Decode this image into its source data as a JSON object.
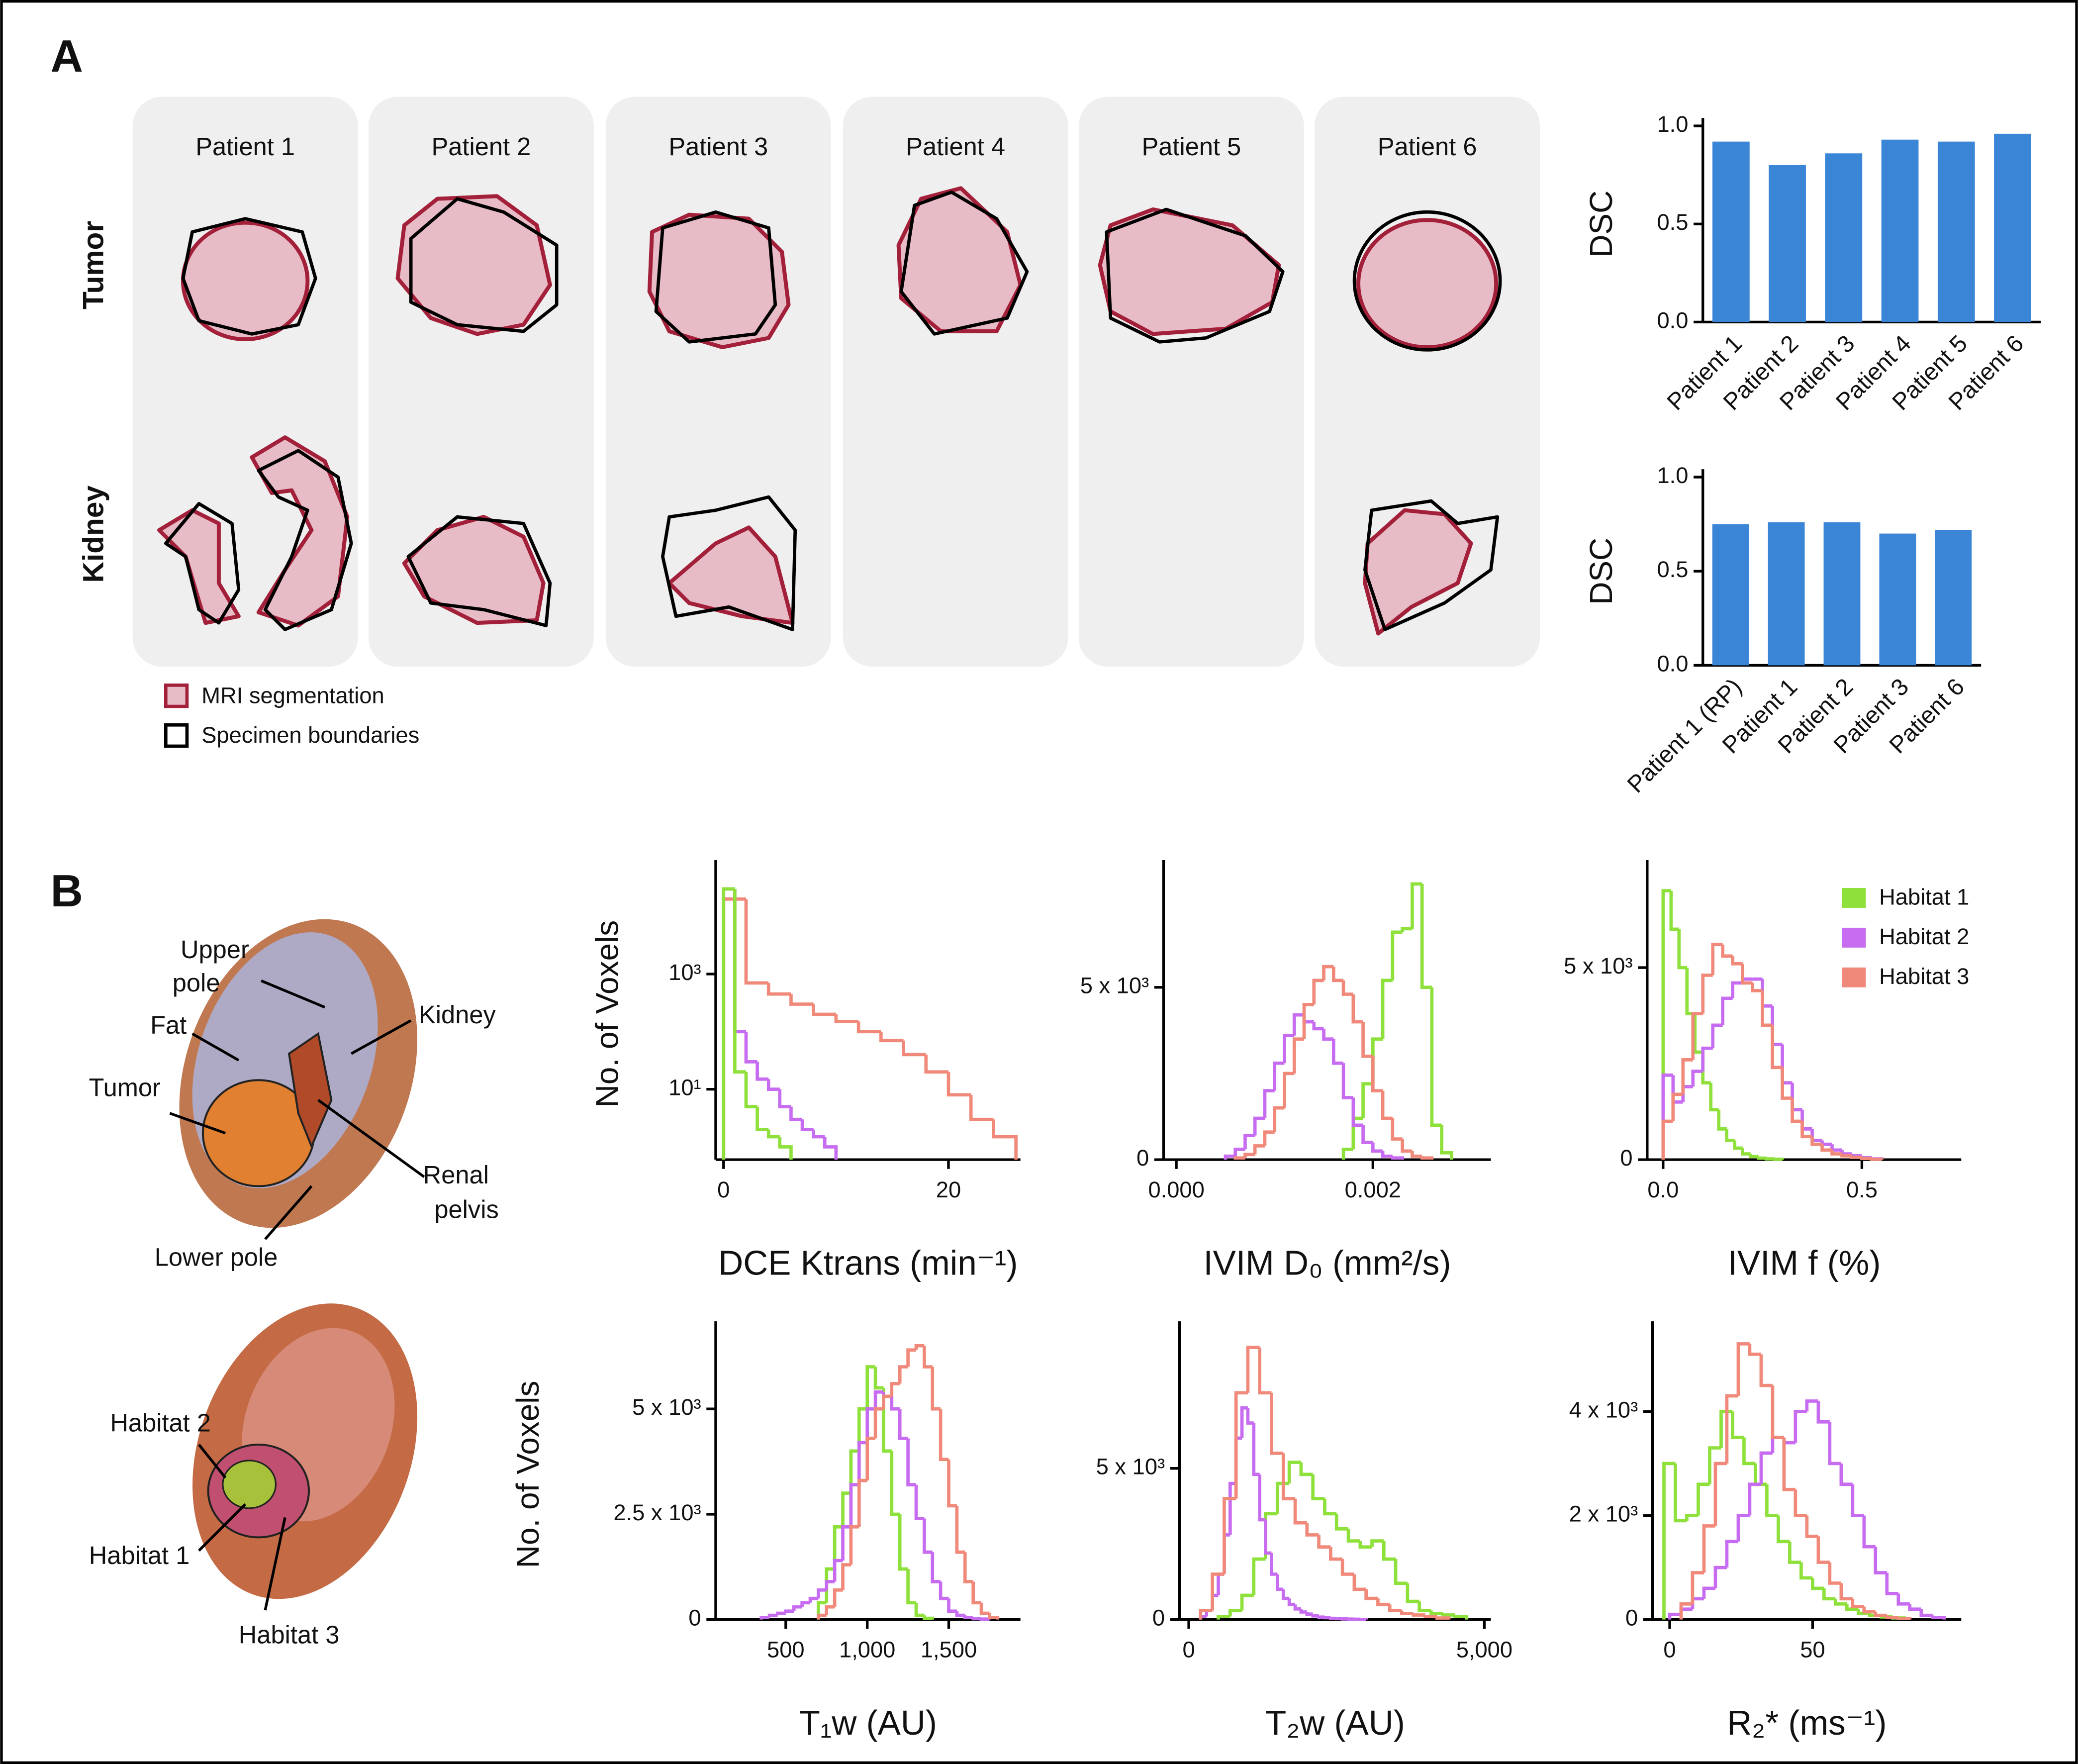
{
  "panel_labels": [
    "A",
    "B"
  ],
  "panel_a": {
    "columns": [
      "Patient 1",
      "Patient 2",
      "Patient 3",
      "Patient 4",
      "Patient 5",
      "Patient 6"
    ],
    "rows": [
      "Tumor",
      "Kidney"
    ],
    "legend": [
      "MRI segmentation",
      "Specimen boundaries"
    ]
  },
  "panel_b": {
    "annotations": [
      [
        "Upper",
        "pole"
      ],
      [
        "Fat"
      ],
      [
        "Kidney"
      ],
      [
        "Tumor"
      ],
      [
        "Renal",
        "pelvis"
      ],
      [
        "Lower pole"
      ]
    ],
    "habitat_labels": [
      "Habitat 2",
      "Habitat 1",
      "Habitat 3"
    ]
  },
  "chart_data": [
    {
      "type": "bar",
      "ylabel": "DSC",
      "color": "#3a85d6",
      "categories": [
        "Patient 1",
        "Patient 2",
        "Patient 3",
        "Patient 4",
        "Patient 5",
        "Patient 6"
      ],
      "values": [
        0.92,
        0.8,
        0.86,
        0.93,
        0.92,
        0.96
      ],
      "ylim": [
        0,
        1.0
      ],
      "yticks": [
        {
          "value": 0,
          "label": "0.0"
        },
        {
          "value": 0.5,
          "label": "0.5"
        },
        {
          "value": 1,
          "label": "1.0"
        }
      ]
    },
    {
      "type": "bar",
      "ylabel": "DSC",
      "color": "#3a85d6",
      "categories": [
        "Patient 1 (RP)",
        "Patient 1",
        "Patient 2",
        "Patient 3",
        "Patient 6"
      ],
      "values": [
        0.75,
        0.76,
        0.76,
        0.7,
        0.72
      ],
      "ylim": [
        0,
        1.0
      ],
      "yticks": [
        {
          "value": 0,
          "label": "0.0"
        },
        {
          "value": 0.5,
          "label": "0.5"
        },
        {
          "value": 1,
          "label": "1.0"
        }
      ]
    },
    {
      "type": "histogram",
      "ylabel": "No. of Voxels",
      "xlabel": "DCE Ktrans (min⁻¹)",
      "log_y": true,
      "xlim": [
        -0.7,
        26.4
      ],
      "ylim": [
        0.6,
        69000
      ],
      "xticks": [
        0,
        20
      ],
      "yticks": [
        {
          "value": 10,
          "label": "10¹"
        },
        {
          "value": 1000,
          "label": "10³"
        }
      ],
      "series": [
        {
          "color": "#f0897a",
          "bins": [
            0,
            2,
            4,
            6,
            8,
            10,
            12,
            14,
            16,
            18,
            20,
            22,
            24,
            26
          ],
          "values": [
            20000,
            700,
            450,
            300,
            200,
            150,
            100,
            70,
            40,
            20,
            8,
            3,
            1.5
          ]
        },
        {
          "color": "#c76cf0",
          "bins": [
            0,
            1,
            2,
            3,
            4,
            5,
            6,
            7,
            8,
            9,
            10
          ],
          "values": [
            30000,
            100,
            30,
            15,
            10,
            5,
            3,
            2,
            1.5,
            1
          ]
        },
        {
          "color": "#8ee03a",
          "bins": [
            0,
            1,
            2,
            3,
            4,
            5,
            6
          ],
          "values": [
            30000,
            20,
            5,
            2,
            1.5,
            1
          ]
        }
      ]
    },
    {
      "type": "histogram",
      "xlabel": "IVIM D₀ (mm²/s)",
      "xlim": [
        -0.00013,
        0.0032
      ],
      "ylim": [
        0,
        8460
      ],
      "xticks": [
        {
          "value": 0,
          "label": "0.000"
        },
        {
          "value": 0.002,
          "label": "0.002"
        }
      ],
      "yticks": [
        0,
        {
          "value": 5000,
          "label": "5 x 10³"
        }
      ],
      "series": [
        {
          "color": "#8ee03a",
          "bins": [
            0.0017,
            0.0018,
            0.0019,
            0.002,
            0.0021,
            0.0022,
            0.0023,
            0.0024,
            0.0025,
            0.0026,
            0.0027,
            0.0028
          ],
          "values": [
            300,
            1200,
            2200,
            3500,
            5200,
            6600,
            6700,
            8000,
            5000,
            1000,
            200
          ]
        },
        {
          "color": "#c76cf0",
          "bins": [
            0.0005,
            0.0006,
            0.0007,
            0.0008,
            0.0009,
            0.001,
            0.0011,
            0.0012,
            0.0013,
            0.0014,
            0.0015,
            0.0016,
            0.0017,
            0.0018,
            0.0019,
            0.002,
            0.0021,
            0.0022,
            0.0023
          ],
          "values": [
            100,
            300,
            700,
            1200,
            2000,
            2800,
            3600,
            4200,
            4000,
            3800,
            3500,
            2800,
            1800,
            1000,
            500,
            250,
            100,
            50
          ]
        },
        {
          "color": "#f0897a",
          "bins": [
            0.0006,
            0.0007,
            0.0008,
            0.0009,
            0.001,
            0.0011,
            0.0012,
            0.0013,
            0.0014,
            0.0015,
            0.0016,
            0.0017,
            0.0018,
            0.0019,
            0.002,
            0.0021,
            0.0022,
            0.0023,
            0.0024,
            0.0025,
            0.0026
          ],
          "values": [
            50,
            150,
            400,
            800,
            1500,
            2500,
            3500,
            4500,
            5200,
            5600,
            5200,
            4800,
            4000,
            3000,
            2000,
            1200,
            600,
            250,
            100,
            50
          ]
        }
      ]
    },
    {
      "type": "histogram",
      "xlabel": "IVIM f (%)",
      "legend": "upper right",
      "xlim": [
        -0.04,
        0.75
      ],
      "ylim": [
        0,
        7590
      ],
      "xticks": [
        {
          "value": 0,
          "label": "0.0"
        },
        {
          "value": 0.5,
          "label": "0.5"
        }
      ],
      "yticks": [
        0,
        {
          "value": 5000,
          "label": "5 x 10³"
        }
      ],
      "series": [
        {
          "name": "Habitat 1",
          "color": "#8ee03a",
          "bins": [
            0,
            0.02,
            0.04,
            0.06,
            0.08,
            0.1,
            0.12,
            0.14,
            0.16,
            0.18,
            0.2,
            0.22,
            0.24,
            0.26,
            0.28,
            0.3
          ],
          "values": [
            7000,
            6000,
            5000,
            3800,
            2800,
            2000,
            1300,
            800,
            500,
            300,
            150,
            80,
            40,
            20,
            10
          ]
        },
        {
          "name": "Habitat 2",
          "color": "#c76cf0",
          "bins": [
            0,
            0.025,
            0.05,
            0.075,
            0.1,
            0.125,
            0.15,
            0.175,
            0.2,
            0.225,
            0.25,
            0.275,
            0.3,
            0.325,
            0.35,
            0.375,
            0.4,
            0.425,
            0.45,
            0.475,
            0.5,
            0.525,
            0.55
          ],
          "values": [
            2200,
            1500,
            1900,
            2300,
            2900,
            3500,
            4200,
            4600,
            4700,
            4700,
            4000,
            3000,
            2000,
            1300,
            800,
            500,
            400,
            250,
            150,
            100,
            50,
            20
          ]
        },
        {
          "name": "Habitat 3",
          "color": "#f0897a",
          "bins": [
            0,
            0.025,
            0.05,
            0.075,
            0.1,
            0.125,
            0.15,
            0.175,
            0.2,
            0.225,
            0.25,
            0.275,
            0.3,
            0.325,
            0.35,
            0.375,
            0.4,
            0.425,
            0.45,
            0.475,
            0.5,
            0.525,
            0.55
          ],
          "values": [
            1000,
            1700,
            2600,
            3800,
            4800,
            5600,
            5300,
            5100,
            4600,
            4400,
            3500,
            2400,
            1600,
            1000,
            600,
            400,
            250,
            150,
            100,
            60,
            30,
            10
          ]
        }
      ]
    },
    {
      "type": "histogram",
      "ylabel": "No. of Voxels",
      "xlabel": "T₁w (AU)",
      "xlim": [
        70,
        1940
      ],
      "ylim": [
        0,
        6890
      ],
      "xticks": [
        500,
        {
          "value": 1000,
          "label": "1,000"
        },
        {
          "value": 1500,
          "label": "1,500"
        }
      ],
      "yticks": [
        0,
        {
          "value": 2500,
          "label": "2.5 x 10³"
        },
        {
          "value": 5000,
          "label": "5 x 10³"
        }
      ],
      "series": [
        {
          "color": "#8ee03a",
          "bins": [
            700,
            750,
            800,
            850,
            900,
            950,
            1000,
            1050,
            1100,
            1150,
            1200,
            1250,
            1300,
            1350,
            1400
          ],
          "values": [
            400,
            1200,
            2200,
            3000,
            4000,
            5000,
            6000,
            5500,
            4000,
            2500,
            1200,
            400,
            100,
            30
          ]
        },
        {
          "color": "#c76cf0",
          "bins": [
            350,
            400,
            450,
            500,
            550,
            600,
            650,
            700,
            750,
            800,
            850,
            900,
            950,
            1000,
            1050,
            1100,
            1150,
            1200,
            1250,
            1300,
            1350,
            1400,
            1450,
            1500,
            1550,
            1600,
            1650,
            1700,
            1750
          ],
          "values": [
            50,
            100,
            150,
            200,
            300,
            400,
            500,
            700,
            900,
            1400,
            2200,
            3200,
            4200,
            5000,
            5400,
            5300,
            5000,
            4300,
            3200,
            2400,
            1600,
            900,
            500,
            200,
            100,
            50,
            20,
            10
          ]
        },
        {
          "color": "#f0897a",
          "bins": [
            700,
            750,
            800,
            850,
            900,
            950,
            1000,
            1050,
            1100,
            1150,
            1200,
            1250,
            1300,
            1350,
            1400,
            1450,
            1500,
            1550,
            1600,
            1650,
            1700,
            1750,
            1800
          ],
          "values": [
            100,
            300,
            700,
            1300,
            2200,
            3300,
            4300,
            5000,
            5300,
            5600,
            6000,
            6400,
            6500,
            6000,
            5000,
            3800,
            2700,
            1600,
            900,
            400,
            150,
            50
          ]
        }
      ]
    },
    {
      "type": "histogram",
      "xlabel": "T₂w (AU)",
      "xlim": [
        -157,
        5110
      ],
      "ylim": [
        0,
        9600
      ],
      "xticks": [
        0,
        {
          "value": 5000,
          "label": "5,000"
        }
      ],
      "yticks": [
        0,
        {
          "value": 5000,
          "label": "5 x 10³"
        }
      ],
      "series": [
        {
          "color": "#8ee03a",
          "bins": [
            500,
            700,
            900,
            1100,
            1300,
            1500,
            1700,
            1900,
            2100,
            2300,
            2500,
            2700,
            2900,
            3100,
            3300,
            3500,
            3700,
            3900,
            4100,
            4300,
            4500,
            4700
          ],
          "values": [
            100,
            300,
            800,
            2000,
            3500,
            4500,
            5200,
            4800,
            4000,
            3500,
            3000,
            2600,
            2400,
            2600,
            2000,
            1200,
            600,
            300,
            200,
            150,
            100
          ]
        },
        {
          "color": "#c76cf0",
          "bins": [
            200,
            300,
            400,
            500,
            600,
            700,
            800,
            900,
            1000,
            1100,
            1200,
            1300,
            1400,
            1500,
            1600,
            1700,
            1800,
            1900,
            2000,
            2100,
            2200,
            2300,
            2400,
            2500,
            2600,
            2700,
            2800,
            2900,
            3000
          ],
          "values": [
            100,
            300,
            800,
            1500,
            2800,
            4500,
            6000,
            7000,
            6500,
            4800,
            3300,
            2200,
            1500,
            1000,
            700,
            500,
            350,
            250,
            180,
            120,
            80,
            60,
            40,
            30,
            20,
            15,
            10,
            5
          ]
        },
        {
          "color": "#f0897a",
          "bins": [
            200,
            400,
            600,
            800,
            1000,
            1200,
            1400,
            1600,
            1800,
            2000,
            2200,
            2400,
            2600,
            2800,
            3000,
            3200,
            3400,
            3600,
            3800,
            4000,
            4200,
            4400
          ],
          "values": [
            300,
            1500,
            4000,
            7500,
            9000,
            7500,
            5500,
            4000,
            3200,
            2800,
            2400,
            2000,
            1500,
            1000,
            700,
            500,
            300,
            200,
            150,
            100,
            50
          ]
        }
      ]
    },
    {
      "type": "histogram",
      "xlabel": "R₂* (ms⁻¹)",
      "xlim": [
        -6,
        102
      ],
      "ylim": [
        0,
        5580
      ],
      "xticks": [
        0,
        50
      ],
      "yticks": [
        0,
        {
          "value": 2000,
          "label": "2 x 10³"
        },
        {
          "value": 4000,
          "label": "4 x 10³"
        }
      ],
      "series": [
        {
          "color": "#8ee03a",
          "bins": [
            -2,
            2,
            6,
            10,
            14,
            18,
            22,
            26,
            30,
            34,
            38,
            42,
            46,
            50,
            54,
            58,
            62,
            66,
            70,
            74,
            78,
            82
          ],
          "values": [
            3000,
            1900,
            2000,
            2600,
            3300,
            4000,
            3500,
            3000,
            2600,
            2000,
            1500,
            1100,
            800,
            600,
            400,
            300,
            200,
            120,
            80,
            50,
            30
          ]
        },
        {
          "color": "#c76cf0",
          "bins": [
            0,
            4,
            8,
            12,
            16,
            20,
            24,
            28,
            32,
            36,
            40,
            44,
            48,
            52,
            56,
            60,
            64,
            68,
            72,
            76,
            80,
            84,
            88,
            92,
            96
          ],
          "values": [
            100,
            200,
            400,
            600,
            1000,
            1500,
            2000,
            2600,
            3200,
            3500,
            3400,
            4000,
            4200,
            3800,
            3000,
            2600,
            2000,
            1400,
            900,
            500,
            300,
            200,
            80,
            40
          ]
        },
        {
          "color": "#f0897a",
          "bins": [
            4,
            8,
            12,
            16,
            20,
            24,
            28,
            32,
            36,
            40,
            44,
            48,
            52,
            56,
            60,
            64,
            68,
            72,
            76,
            80,
            84
          ],
          "values": [
            300,
            900,
            1800,
            3000,
            4300,
            5300,
            5100,
            4500,
            3500,
            2500,
            2000,
            1600,
            1100,
            700,
            400,
            250,
            150,
            80,
            40,
            20
          ]
        }
      ]
    }
  ]
}
